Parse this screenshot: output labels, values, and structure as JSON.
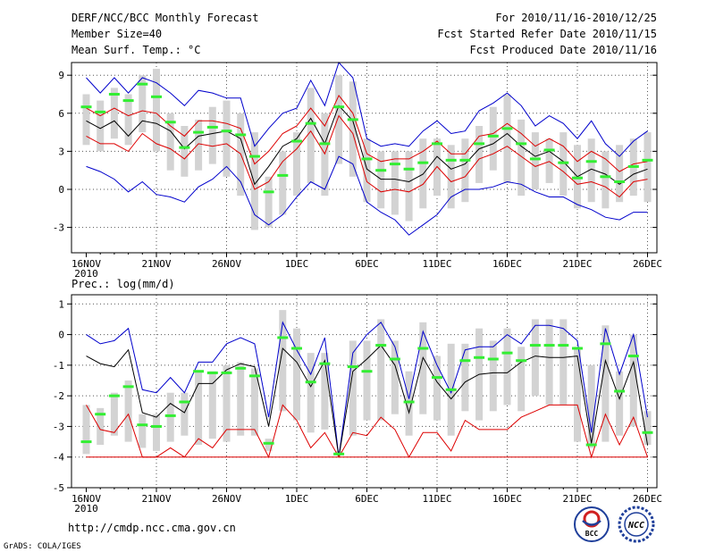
{
  "header": {
    "title": "DERF/NCC/BCC Monthly Forecast",
    "member_size": "Member Size=40",
    "period": "For 2010/11/16-2010/12/25",
    "started_refer": "Fcst Started Refer Date 2010/11/15",
    "produced": "Fcst Produced Date 2010/11/16"
  },
  "footer": {
    "url": "http://cmdp.ncc.cma.gov.cn",
    "grads": "GrADS: COLA/IGES",
    "logo1_text": "BCC",
    "logo2_text": "NCC"
  },
  "colors": {
    "box": "#d3d3d3",
    "median": "#33ee33",
    "mean": "#000000",
    "spread": "#dd0000",
    "extreme": "#0000cc",
    "grid": "#555555"
  },
  "chart_data": [
    {
      "type": "box",
      "title": "Mean Surf. Temp.: °C",
      "ylim": [
        -5,
        10
      ],
      "yticks": [
        -3,
        0,
        3,
        6,
        9
      ],
      "xticks": [
        {
          "day": 0,
          "label": "16NOV",
          "sub": "2010"
        },
        {
          "day": 5,
          "label": "21NOV"
        },
        {
          "day": 10,
          "label": "26NOV"
        },
        {
          "day": 15,
          "label": "1DEC"
        },
        {
          "day": 20,
          "label": "6DEC"
        },
        {
          "day": 25,
          "label": "11DEC"
        },
        {
          "day": 30,
          "label": "16DEC"
        },
        {
          "day": 35,
          "label": "21DEC"
        },
        {
          "day": 40,
          "label": "26DEC"
        }
      ],
      "boxes": [
        {
          "low": 3.5,
          "high": 7.5,
          "median": 6.5
        },
        {
          "low": 3.0,
          "high": 7.0,
          "median": 6.1
        },
        {
          "low": 4.0,
          "high": 8.0,
          "median": 7.5
        },
        {
          "low": 3.5,
          "high": 7.5,
          "median": 7.0
        },
        {
          "low": 4.5,
          "high": 9.0,
          "median": 8.3
        },
        {
          "low": 3.0,
          "high": 9.5,
          "median": 7.3
        },
        {
          "low": 1.5,
          "high": 6.0,
          "median": 5.3
        },
        {
          "low": 1.0,
          "high": 5.0,
          "median": 3.3
        },
        {
          "low": 1.5,
          "high": 5.5,
          "median": 4.5
        },
        {
          "low": 2.0,
          "high": 6.5,
          "median": 4.9
        },
        {
          "low": 1.0,
          "high": 7.0,
          "median": 4.6
        },
        {
          "low": -0.5,
          "high": 6.0,
          "median": 4.3
        },
        {
          "low": -3.2,
          "high": 4.5,
          "median": 2.6
        },
        {
          "low": -3.0,
          "high": 1.0,
          "median": -0.2
        },
        {
          "low": -2.0,
          "high": 3.0,
          "median": 1.1
        },
        {
          "low": -0.5,
          "high": 4.5,
          "median": 3.8
        },
        {
          "low": 0.5,
          "high": 8.0,
          "median": 5.2
        },
        {
          "low": -0.5,
          "high": 6.0,
          "median": 3.6
        },
        {
          "low": 2.0,
          "high": 9.0,
          "median": 6.5
        },
        {
          "low": 1.0,
          "high": 8.5,
          "median": 5.5
        },
        {
          "low": -1.0,
          "high": 4.0,
          "median": 2.4
        },
        {
          "low": -1.5,
          "high": 3.0,
          "median": 1.5
        },
        {
          "low": -2.0,
          "high": 3.0,
          "median": 2.0
        },
        {
          "low": -2.5,
          "high": 3.0,
          "median": 1.6
        },
        {
          "low": -1.5,
          "high": 4.0,
          "median": 2.1
        },
        {
          "low": -0.5,
          "high": 4.0,
          "median": 3.6
        },
        {
          "low": -1.5,
          "high": 3.5,
          "median": 2.3
        },
        {
          "low": -1.0,
          "high": 4.0,
          "median": 2.3
        },
        {
          "low": 0.5,
          "high": 5.0,
          "median": 3.6
        },
        {
          "low": 1.5,
          "high": 6.5,
          "median": 4.2
        },
        {
          "low": 0.5,
          "high": 7.5,
          "median": 4.8
        },
        {
          "low": -0.5,
          "high": 5.5,
          "median": 3.6
        },
        {
          "low": 0.0,
          "high": 4.5,
          "median": 2.4
        },
        {
          "low": 0.5,
          "high": 4.0,
          "median": 3.1
        },
        {
          "low": -0.5,
          "high": 4.5,
          "median": 2.1
        },
        {
          "low": -1.5,
          "high": 3.5,
          "median": 0.9
        },
        {
          "low": -1.0,
          "high": 4.0,
          "median": 2.2
        },
        {
          "low": -1.5,
          "high": 3.0,
          "median": 1.0
        },
        {
          "low": -1.0,
          "high": 3.5,
          "median": 0.6
        },
        {
          "low": -0.5,
          "high": 4.0,
          "median": 1.8
        },
        {
          "low": -1.0,
          "high": 4.5,
          "median": 2.3
        }
      ],
      "series": [
        {
          "name": "max",
          "color": "#0000cc",
          "values": [
            8.8,
            7.6,
            8.8,
            7.6,
            8.8,
            8.4,
            7.6,
            6.6,
            7.8,
            7.6,
            7.2,
            7.2,
            3.4,
            4.8,
            6.0,
            6.4,
            8.6,
            6.6,
            10.0,
            8.8,
            4.0,
            3.4,
            3.6,
            3.4,
            4.6,
            5.4,
            4.4,
            4.6,
            6.2,
            6.8,
            7.6,
            6.6,
            5.0,
            5.8,
            5.2,
            4.0,
            5.4,
            3.6,
            2.6,
            3.8,
            4.6
          ]
        },
        {
          "name": "mean_plus_sd",
          "color": "#dd0000",
          "values": [
            6.4,
            5.8,
            6.4,
            5.8,
            6.2,
            6.0,
            5.0,
            4.2,
            5.4,
            5.4,
            5.2,
            4.8,
            2.0,
            3.0,
            4.4,
            5.0,
            6.4,
            5.0,
            7.4,
            6.0,
            2.8,
            2.2,
            2.4,
            2.4,
            3.0,
            3.8,
            2.8,
            2.8,
            4.2,
            4.4,
            5.2,
            4.4,
            3.4,
            4.0,
            3.4,
            2.2,
            3.0,
            2.4,
            1.4,
            2.0,
            2.2
          ]
        },
        {
          "name": "mean",
          "color": "#000000",
          "values": [
            5.4,
            4.8,
            5.4,
            4.2,
            5.4,
            5.2,
            4.6,
            3.2,
            4.2,
            4.4,
            4.6,
            4.0,
            0.4,
            1.8,
            3.4,
            4.0,
            5.6,
            3.6,
            6.6,
            5.4,
            1.6,
            0.8,
            0.8,
            0.6,
            1.2,
            2.6,
            1.6,
            2.0,
            3.2,
            3.6,
            4.4,
            3.4,
            2.6,
            3.0,
            2.2,
            1.0,
            1.6,
            1.2,
            0.4,
            1.2,
            1.6
          ]
        },
        {
          "name": "mean_minus_sd",
          "color": "#dd0000",
          "values": [
            4.2,
            3.6,
            3.6,
            3.0,
            4.4,
            3.6,
            3.2,
            2.4,
            3.6,
            3.4,
            3.6,
            2.8,
            0.0,
            0.6,
            2.2,
            3.2,
            4.6,
            2.8,
            5.8,
            4.4,
            0.6,
            -0.2,
            0.0,
            -0.2,
            0.4,
            1.8,
            0.6,
            1.0,
            2.4,
            2.8,
            3.4,
            2.6,
            1.8,
            2.2,
            1.4,
            0.4,
            0.6,
            0.2,
            -0.6,
            0.6,
            0.8
          ]
        },
        {
          "name": "min",
          "color": "#0000cc",
          "values": [
            1.8,
            1.4,
            0.8,
            -0.2,
            0.6,
            -0.4,
            -0.6,
            -1.0,
            0.2,
            0.8,
            1.8,
            0.6,
            -2.0,
            -2.8,
            -2.0,
            -0.6,
            0.6,
            0.0,
            2.6,
            2.0,
            -1.0,
            -1.8,
            -2.4,
            -3.6,
            -2.8,
            -2.0,
            -0.6,
            0.0,
            0.0,
            0.2,
            0.6,
            0.4,
            -0.2,
            -0.6,
            -0.6,
            -1.2,
            -1.6,
            -2.2,
            -2.4,
            -1.8,
            -1.8
          ]
        }
      ]
    },
    {
      "type": "box",
      "title": "Prec.: log(mm/d)",
      "ylim": [
        -5,
        1.3
      ],
      "yticks": [
        -5,
        -4,
        -3,
        -2,
        -1,
        0,
        1
      ],
      "xticks": [
        {
          "day": 0,
          "label": "16NOV",
          "sub": "2010"
        },
        {
          "day": 5,
          "label": "21NOV"
        },
        {
          "day": 10,
          "label": "26NOV"
        },
        {
          "day": 15,
          "label": "1DEC"
        },
        {
          "day": 20,
          "label": "6DEC"
        },
        {
          "day": 25,
          "label": "11DEC"
        },
        {
          "day": 30,
          "label": "16DEC"
        },
        {
          "day": 35,
          "label": "21DEC"
        },
        {
          "day": 40,
          "label": "26DEC"
        }
      ],
      "boxes": [
        {
          "low": -3.9,
          "high": -2.3,
          "median": -3.5
        },
        {
          "low": -3.6,
          "high": -2.4,
          "median": -2.6
        },
        {
          "low": -3.3,
          "high": -1.9,
          "median": -2.0
        },
        {
          "low": -3.5,
          "high": -1.5,
          "median": -1.7
        },
        {
          "low": -3.7,
          "high": -2.6,
          "median": -2.95
        },
        {
          "low": -3.8,
          "high": -2.6,
          "median": -3.0
        },
        {
          "low": -3.5,
          "high": -1.9,
          "median": -2.65
        },
        {
          "low": -3.3,
          "high": -1.9,
          "median": -2.2
        },
        {
          "low": -3.6,
          "high": -1.2,
          "median": -1.2
        },
        {
          "low": -3.4,
          "high": -1.2,
          "median": -1.25
        },
        {
          "low": -3.5,
          "high": -1.0,
          "median": -1.25
        },
        {
          "low": -3.3,
          "high": -0.9,
          "median": -1.1
        },
        {
          "low": -3.3,
          "high": -1.1,
          "median": -1.35
        },
        {
          "low": -3.8,
          "high": -3.4,
          "median": -3.55
        },
        {
          "low": -2.5,
          "high": 0.8,
          "median": -0.1
        },
        {
          "low": -2.8,
          "high": 0.2,
          "median": -0.45
        },
        {
          "low": -3.2,
          "high": -0.6,
          "median": -1.55
        },
        {
          "low": -3.1,
          "high": -0.6,
          "median": -0.95
        },
        {
          "low": -3.9,
          "high": -3.8,
          "median": -3.9
        },
        {
          "low": -3.3,
          "high": -0.2,
          "median": -1.05
        },
        {
          "low": -2.8,
          "high": -0.2,
          "median": -1.2
        },
        {
          "low": -2.8,
          "high": 0.5,
          "median": -0.35
        },
        {
          "low": -2.6,
          "high": -0.2,
          "median": -0.8
        },
        {
          "low": -3.3,
          "high": -1.2,
          "median": -2.2
        },
        {
          "low": -2.6,
          "high": 0.4,
          "median": -0.45
        },
        {
          "low": -2.8,
          "high": -0.7,
          "median": -1.4
        },
        {
          "low": -3.3,
          "high": -0.3,
          "median": -1.8
        },
        {
          "low": -2.5,
          "high": -0.3,
          "median": -0.85
        },
        {
          "low": -2.8,
          "high": 0.2,
          "median": -0.75
        },
        {
          "low": -2.5,
          "high": -0.2,
          "median": -0.8
        },
        {
          "low": -2.3,
          "high": 0.2,
          "median": -0.6
        },
        {
          "low": -2.5,
          "high": -0.4,
          "median": -0.85
        },
        {
          "low": -2.0,
          "high": 0.5,
          "median": -0.35
        },
        {
          "low": -2.3,
          "high": 0.5,
          "median": -0.35
        },
        {
          "low": -2.3,
          "high": 0.5,
          "median": -0.35
        },
        {
          "low": -3.5,
          "high": -0.4,
          "median": -0.45
        },
        {
          "low": -3.7,
          "high": -1.0,
          "median": -3.6
        },
        {
          "low": -3.5,
          "high": 0.3,
          "median": -0.3
        },
        {
          "low": -3.3,
          "high": -1.2,
          "median": -1.85
        },
        {
          "low": -3.0,
          "high": 0.0,
          "median": -0.7
        },
        {
          "low": -3.6,
          "high": -2.5,
          "median": -3.2
        }
      ],
      "series": [
        {
          "name": "max",
          "color": "#0000cc",
          "values": [
            0.0,
            -0.3,
            -0.2,
            0.2,
            -1.8,
            -1.9,
            -1.4,
            -1.9,
            -0.9,
            -0.9,
            -0.3,
            -0.1,
            -0.3,
            -2.7,
            0.4,
            -0.5,
            -1.3,
            -0.1,
            -4.0,
            -0.6,
            0.0,
            0.4,
            -0.4,
            -2.1,
            0.1,
            -1.0,
            -1.9,
            -0.5,
            -0.4,
            -0.4,
            0.0,
            -0.3,
            0.3,
            0.3,
            0.2,
            -0.2,
            -3.2,
            0.2,
            -1.3,
            0.0,
            -2.7
          ]
        },
        {
          "name": "mean",
          "color": "#000000",
          "values": [
            -0.7,
            -0.95,
            -1.05,
            -0.5,
            -2.55,
            -2.7,
            -2.25,
            -2.55,
            -1.6,
            -1.6,
            -1.15,
            -0.95,
            -1.05,
            -3.0,
            -0.45,
            -0.9,
            -1.7,
            -0.85,
            -4.0,
            -1.2,
            -0.8,
            -0.35,
            -1.0,
            -2.55,
            -0.75,
            -1.55,
            -2.1,
            -1.55,
            -1.3,
            -1.25,
            -1.25,
            -0.9,
            -0.7,
            -0.75,
            -0.75,
            -0.7,
            -3.55,
            -0.85,
            -2.1,
            -0.9,
            -3.6
          ]
        },
        {
          "name": "min",
          "color": "#dd0000",
          "values": [
            -2.3,
            -3.1,
            -3.2,
            -2.6,
            -4.0,
            -4.0,
            -3.7,
            -4.0,
            -3.4,
            -3.7,
            -3.1,
            -3.1,
            -3.1,
            -4.0,
            -2.3,
            -2.8,
            -3.7,
            -3.2,
            -4.0,
            -3.2,
            -3.3,
            -2.7,
            -3.1,
            -4.0,
            -3.2,
            -3.2,
            -3.8,
            -2.8,
            -3.1,
            -3.1,
            -3.1,
            -2.7,
            -2.5,
            -2.3,
            -2.3,
            -2.3,
            -4.0,
            -2.6,
            -3.6,
            -2.7,
            -4.0
          ]
        },
        {
          "name": "floor",
          "color": "#dd0000",
          "values": [
            -4.0,
            -4.0,
            -4.0,
            -4.0,
            -4.0,
            -4.0,
            -4.0,
            -4.0,
            -4.0,
            -4.0,
            -4.0,
            -4.0,
            -4.0,
            -4.0,
            -4.0,
            -4.0,
            -4.0,
            -4.0,
            -4.0,
            -4.0,
            -4.0,
            -4.0,
            -4.0,
            -4.0,
            -4.0,
            -4.0,
            -4.0,
            -4.0,
            -4.0,
            -4.0,
            -4.0,
            -4.0,
            -4.0,
            -4.0,
            -4.0,
            -4.0,
            -4.0,
            -4.0,
            -4.0,
            -4.0,
            -4.0
          ]
        }
      ]
    }
  ]
}
